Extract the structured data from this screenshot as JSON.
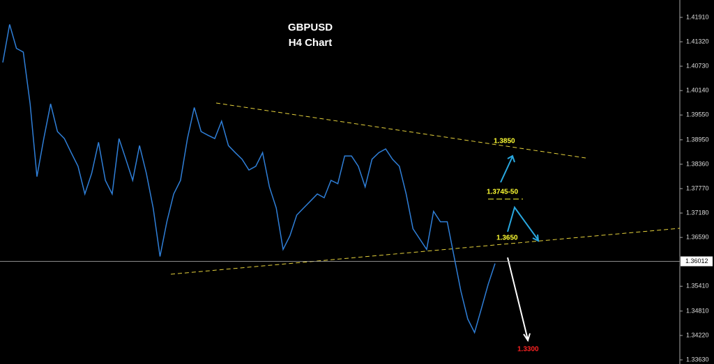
{
  "chart_data": {
    "type": "line",
    "title": "GBPUSD",
    "subtitle": "H4 Chart",
    "values": [
      1.4082,
      1.4174,
      1.4116,
      1.4107,
      1.3982,
      1.3806,
      1.3898,
      1.3982,
      1.3915,
      1.3898,
      1.3864,
      1.3831,
      1.3764,
      1.3814,
      1.3889,
      1.3797,
      1.3764,
      1.3898,
      1.3848,
      1.3797,
      1.3881,
      1.3814,
      1.373,
      1.3613,
      1.3697,
      1.3764,
      1.3797,
      1.3898,
      1.3973,
      1.3915,
      1.3906,
      1.3898,
      1.394,
      1.3881,
      1.3864,
      1.3848,
      1.3822,
      1.3831,
      1.3864,
      1.3781,
      1.373,
      1.363,
      1.3663,
      1.3713,
      1.373,
      1.3747,
      1.3764,
      1.3755,
      1.3797,
      1.3789,
      1.3856,
      1.3856,
      1.3831,
      1.3781,
      1.3848,
      1.3864,
      1.3873,
      1.3848,
      1.3831,
      1.3764,
      1.368,
      1.3655,
      1.363,
      1.3722,
      1.3697,
      1.3697,
      1.3613,
      1.3529,
      1.3462,
      1.3429,
      1.3487,
      1.3546,
      1.3596
    ],
    "color": "#2f7fd8",
    "ylim": [
      1.3353,
      1.4233
    ],
    "yticks": [
      {
        "value": 1.4191,
        "label": "1.41910"
      },
      {
        "value": 1.4132,
        "label": "1.41320"
      },
      {
        "value": 1.4073,
        "label": "1.40730"
      },
      {
        "value": 1.4014,
        "label": "1.40140"
      },
      {
        "value": 1.3955,
        "label": "1.39550"
      },
      {
        "value": 1.3895,
        "label": "1.38950"
      },
      {
        "value": 1.3836,
        "label": "1.38360"
      },
      {
        "value": 1.3777,
        "label": "1.37770"
      },
      {
        "value": 1.3718,
        "label": "1.37180"
      },
      {
        "value": 1.3659,
        "label": "1.36590"
      },
      {
        "value": 1.3541,
        "label": "1.35410"
      },
      {
        "value": 1.3481,
        "label": "1.34810"
      },
      {
        "value": 1.3422,
        "label": "1.34220"
      },
      {
        "value": 1.3363,
        "label": "1.33630"
      }
    ],
    "current_price": {
      "value": 1.36012,
      "label": "1.36012"
    },
    "annotations": [
      "1.3850",
      "1.3745-50",
      "1.3650",
      "1.3300"
    ]
  }
}
